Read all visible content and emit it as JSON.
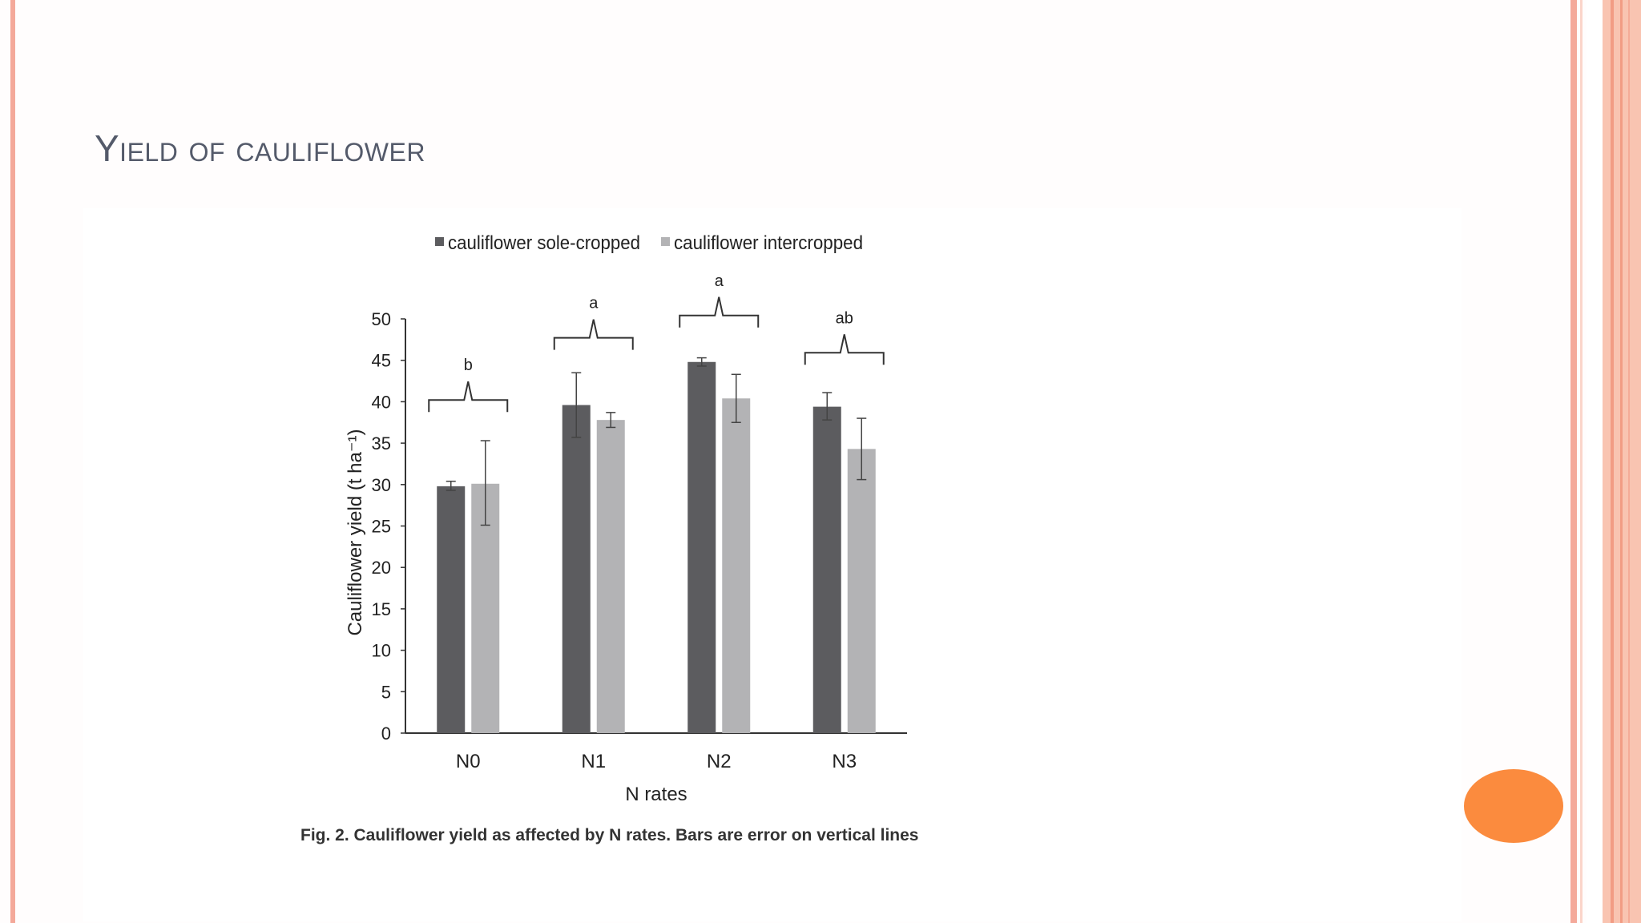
{
  "slide": {
    "title": "Yield of cauliflower"
  },
  "caption_fragment": "Fig. 2. Cauliflower yield as affected by N rates. Bars are error on vertical lines",
  "colors": {
    "title": "#545a6a",
    "accent_border": "#f4a99a",
    "oval": "#fb8b3e",
    "sole": "#5c5c5f",
    "inter": "#b3b3b5"
  },
  "chart_data": {
    "type": "bar",
    "title": "",
    "xlabel": "N rates",
    "ylabel": "Cauliflower yield (t ha⁻¹)",
    "ylim": [
      0,
      50
    ],
    "yticks": [
      0,
      5,
      10,
      15,
      20,
      25,
      30,
      35,
      40,
      45,
      50
    ],
    "categories": [
      "N0",
      "N1",
      "N2",
      "N3"
    ],
    "legend_position": "top",
    "series": [
      {
        "name": "cauliflower sole-cropped",
        "color": "#5c5c5f",
        "values": [
          29.8,
          39.6,
          44.8,
          39.4
        ],
        "error_low": [
          29.3,
          35.7,
          44.3,
          37.8
        ],
        "error_high": [
          30.4,
          43.5,
          45.3,
          41.1
        ]
      },
      {
        "name": "cauliflower intercropped",
        "color": "#b3b3b5",
        "values": [
          30.1,
          37.8,
          40.4,
          34.3
        ],
        "error_low": [
          25.1,
          36.9,
          37.5,
          30.6
        ],
        "error_high": [
          35.3,
          38.7,
          43.3,
          38.0
        ]
      }
    ],
    "group_letters": [
      {
        "category": "N0",
        "letter": "b",
        "y": 40.5
      },
      {
        "category": "N1",
        "letter": "a",
        "y": 48.0
      },
      {
        "category": "N2",
        "letter": "a",
        "y": 50.7
      },
      {
        "category": "N3",
        "letter": "ab",
        "y": 46.2
      }
    ]
  }
}
